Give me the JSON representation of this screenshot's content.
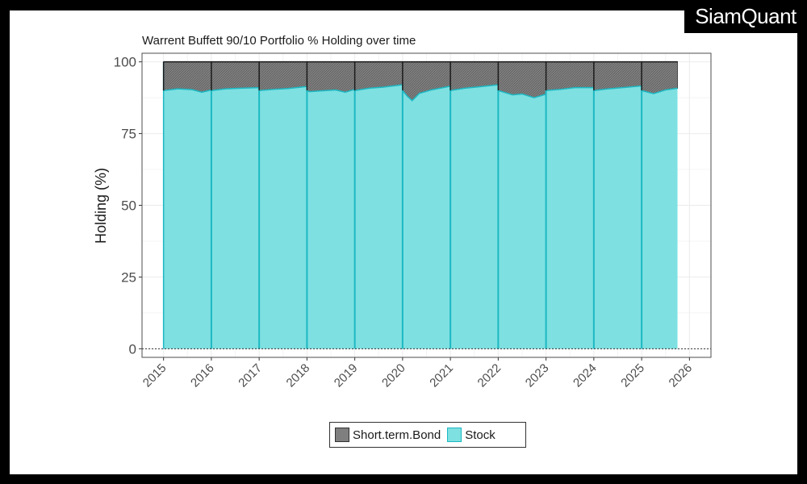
{
  "brand": {
    "name": "SiamQuant"
  },
  "chart_data": {
    "type": "area",
    "title": "Warrent Buffett 90/10 Portfolio % Holding over time",
    "xlabel": "",
    "ylabel": "Holding (%)",
    "xlim": [
      2014.55,
      2026.45
    ],
    "ylim": [
      -3,
      103
    ],
    "yticks": [
      0,
      25,
      50,
      75,
      100
    ],
    "xticks": [
      2015,
      2016,
      2017,
      2018,
      2019,
      2020,
      2021,
      2022,
      2023,
      2024,
      2025,
      2026
    ],
    "x_tick_labels": [
      "2015",
      "2016",
      "2017",
      "2018",
      "2019",
      "2020",
      "2021",
      "2022",
      "2023",
      "2024",
      "2025",
      "2026"
    ],
    "rebalance_dates": [
      2016,
      2017,
      2018,
      2019,
      2020,
      2021,
      2022,
      2023,
      2024,
      2025
    ],
    "series": [
      {
        "name": "Stock",
        "color": "#7ee0e1",
        "line_color": "#1cb8c3",
        "x": [
          2015,
          2015.3,
          2015.6,
          2015.8,
          2015.999,
          2016,
          2016.3,
          2016.6,
          2016.999,
          2017,
          2017.3,
          2017.6,
          2017.999,
          2018,
          2018.05,
          2018.3,
          2018.6,
          2018.8,
          2018.999,
          2019,
          2019.3,
          2019.6,
          2019.999,
          2020,
          2020.1,
          2020.2,
          2020.35,
          2020.6,
          2020.999,
          2021,
          2021.3,
          2021.6,
          2021.999,
          2022,
          2022.3,
          2022.5,
          2022.75,
          2022.999,
          2023,
          2023.3,
          2023.6,
          2023.999,
          2024,
          2024.3,
          2024.6,
          2024.999,
          2025,
          2025.25,
          2025.5,
          2025.75
        ],
        "values": [
          90,
          90.6,
          90.3,
          89.4,
          90.2,
          90,
          90.6,
          90.8,
          91.0,
          90,
          90.4,
          90.7,
          91.4,
          90,
          89.6,
          89.9,
          90.2,
          89.4,
          90.4,
          90,
          90.8,
          91.2,
          92.0,
          90,
          88.0,
          86.5,
          89.0,
          90.2,
          91.5,
          90,
          90.8,
          91.3,
          92.0,
          90,
          88.5,
          88.8,
          87.5,
          88.7,
          90,
          90.4,
          91.0,
          91.0,
          90,
          90.6,
          91.0,
          91.6,
          90,
          88.9,
          90.2,
          90.8
        ]
      },
      {
        "name": "Short.term.Bond",
        "color": "#7f7f7f",
        "total": 100
      }
    ],
    "legend": {
      "position": "bottom",
      "items": [
        "Short.term.Bond",
        "Stock"
      ]
    }
  }
}
